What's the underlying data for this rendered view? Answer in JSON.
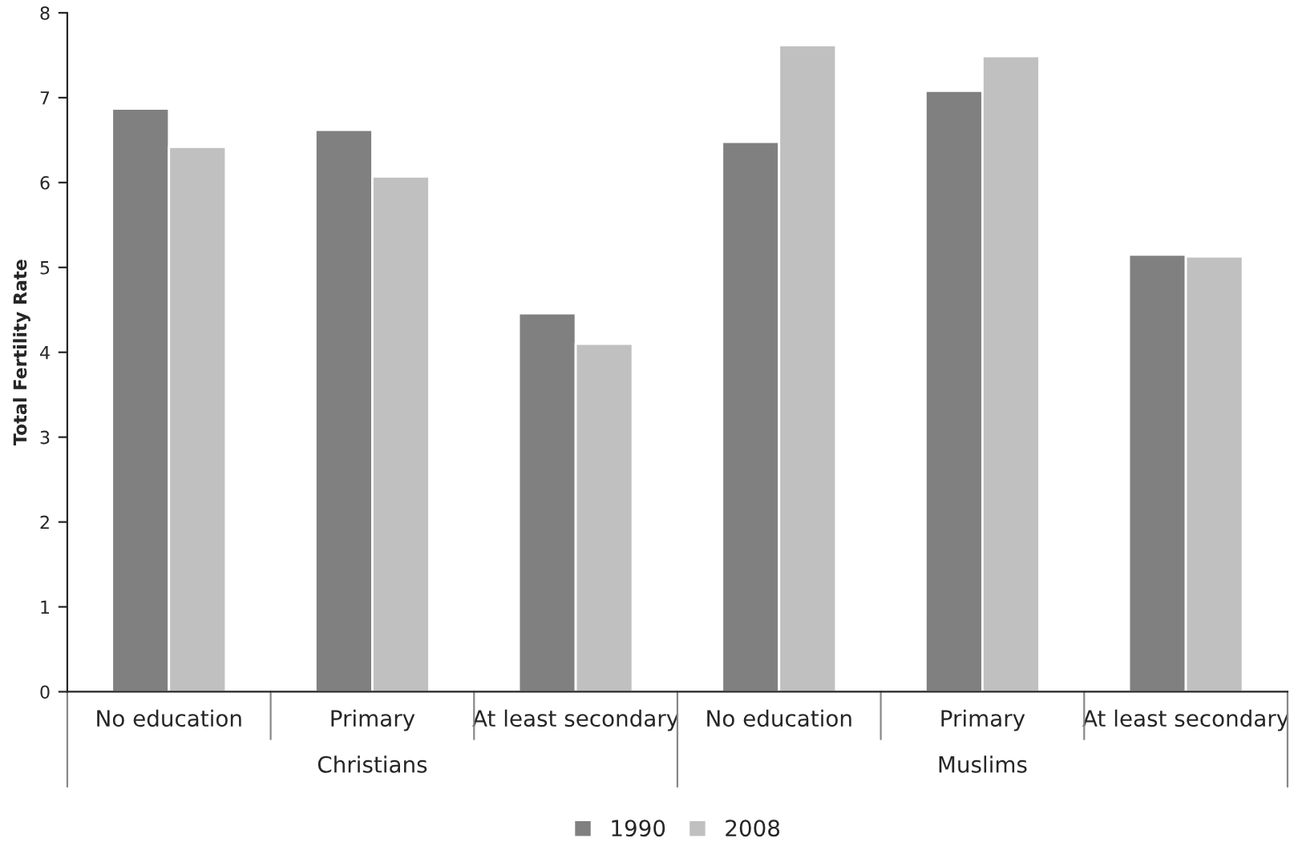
{
  "chart_data": {
    "type": "bar",
    "ylabel": "Total Fertility Rate",
    "categories": [
      "No education",
      "Primary",
      "At least secondary",
      "No education",
      "Primary",
      "At least secondary"
    ],
    "series": [
      {
        "name": "1990",
        "color": "#808080",
        "values": [
          6.87,
          6.62,
          4.46,
          6.48,
          7.08,
          5.15
        ]
      },
      {
        "name": "2008",
        "color": "#c0c0c0",
        "values": [
          6.42,
          6.07,
          4.1,
          7.62,
          7.49,
          5.13
        ]
      }
    ],
    "annotations": [
      "Christians",
      "Muslims"
    ],
    "ylim": [
      0,
      8
    ],
    "yticks": [
      0,
      1,
      2,
      3,
      4,
      5,
      6,
      7,
      8
    ],
    "grid": false,
    "legend": "bottom"
  }
}
